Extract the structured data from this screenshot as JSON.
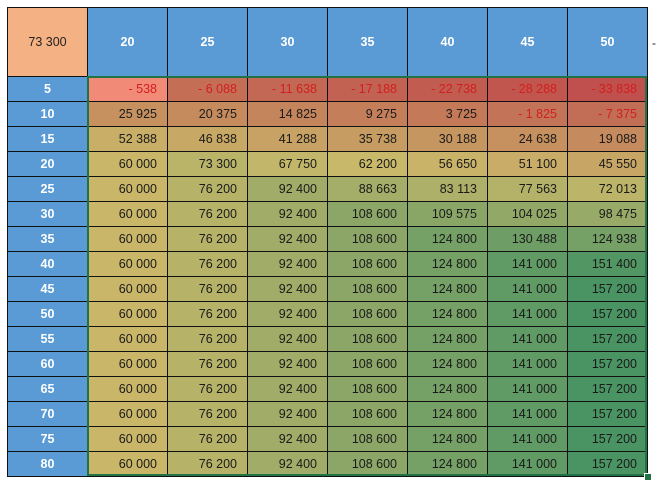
{
  "sheet": {
    "corner_value": "73 300",
    "column_headers": [
      "20",
      "25",
      "30",
      "35",
      "40",
      "45",
      "50"
    ],
    "row_headers": [
      "5",
      "10",
      "15",
      "20",
      "25",
      "30",
      "35",
      "40",
      "45",
      "50",
      "55",
      "60",
      "65",
      "70",
      "75",
      "80"
    ],
    "rows": [
      [
        "- 538",
        "- 6 088",
        "- 11 638",
        "- 17 188",
        "- 22 738",
        "- 28 288",
        "- 33 838"
      ],
      [
        "25 925",
        "20 375",
        "14 825",
        "9 275",
        "3 725",
        "- 1 825",
        "- 7 375"
      ],
      [
        "52 388",
        "46 838",
        "41 288",
        "35 738",
        "30 188",
        "24 638",
        "19 088"
      ],
      [
        "60 000",
        "73 300",
        "67 750",
        "62 200",
        "56 650",
        "51 100",
        "45 550"
      ],
      [
        "60 000",
        "76 200",
        "92 400",
        "88 663",
        "83 113",
        "77 563",
        "72 013"
      ],
      [
        "60 000",
        "76 200",
        "92 400",
        "108 600",
        "109 575",
        "104 025",
        "98 475"
      ],
      [
        "60 000",
        "76 200",
        "92 400",
        "108 600",
        "124 800",
        "130 488",
        "124 938"
      ],
      [
        "60 000",
        "76 200",
        "92 400",
        "108 600",
        "124 800",
        "141 000",
        "151 400"
      ],
      [
        "60 000",
        "76 200",
        "92 400",
        "108 600",
        "124 800",
        "141 000",
        "157 200"
      ],
      [
        "60 000",
        "76 200",
        "92 400",
        "108 600",
        "124 800",
        "141 000",
        "157 200"
      ],
      [
        "60 000",
        "76 200",
        "92 400",
        "108 600",
        "124 800",
        "141 000",
        "157 200"
      ],
      [
        "60 000",
        "76 200",
        "92 400",
        "108 600",
        "124 800",
        "141 000",
        "157 200"
      ],
      [
        "60 000",
        "76 200",
        "92 400",
        "108 600",
        "124 800",
        "141 000",
        "157 200"
      ],
      [
        "60 000",
        "76 200",
        "92 400",
        "108 600",
        "124 800",
        "141 000",
        "157 200"
      ],
      [
        "60 000",
        "76 200",
        "92 400",
        "108 600",
        "124 800",
        "141 000",
        "157 200"
      ],
      [
        "60 000",
        "76 200",
        "92 400",
        "108 600",
        "124 800",
        "141 000",
        "157 200"
      ]
    ],
    "side_marker": "-"
  },
  "colors": {
    "corner_bg": "#f4b183",
    "header_bg": "#5b9bd5",
    "header_text": "#ffffff",
    "negative_text": "#d21f1f",
    "selection_border": "#217346",
    "scale_min": "#c0504d",
    "scale_mid": "#c9b86a",
    "scale_max": "#4a9464",
    "highlight_min_cell": "#f28a78"
  }
}
